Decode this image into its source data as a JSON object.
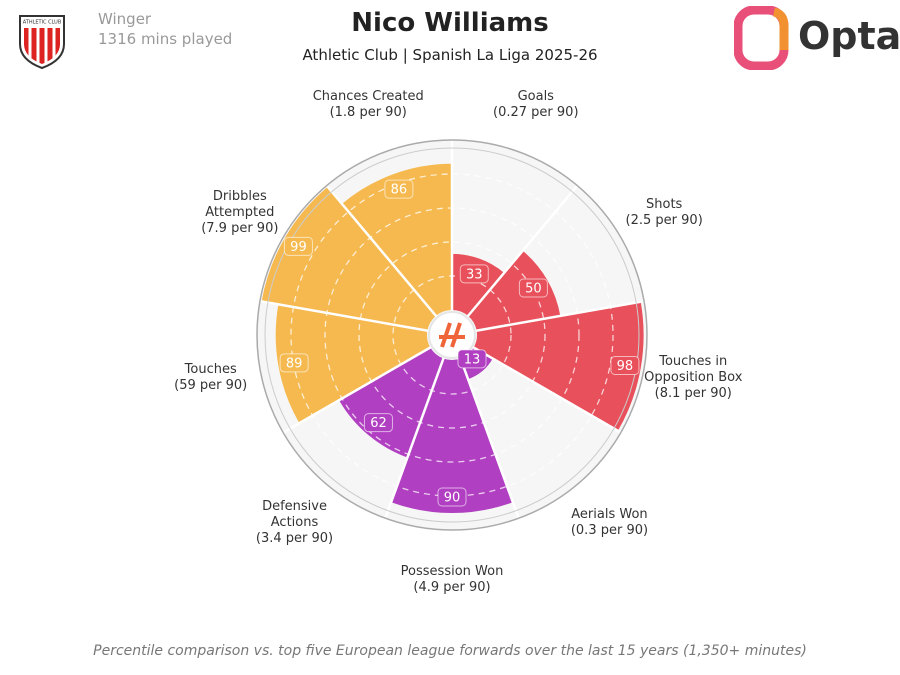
{
  "header": {
    "position": "Winger",
    "minutes": "1316 mins played",
    "crest_text": "ATHLETIC CLUB",
    "brand": "Opta"
  },
  "chart_data": {
    "type": "pizza",
    "title": "Nico Williams",
    "subtitle": "Athletic Club | Spanish La Liga 2025-26",
    "categories": [
      "Goals",
      "Shots",
      "Touches in Opposition Box",
      "Aerials Won",
      "Possession Won",
      "Defensive Actions",
      "Touches",
      "Dribbles Attempted",
      "Chances Created"
    ],
    "category_notes": [
      "(0.27 per 90)",
      "(2.5 per 90)",
      "(8.1 per 90)",
      "(0.3 per 90)",
      "(4.9 per 90)",
      "(3.4 per 90)",
      "(59 per 90)",
      "(7.9 per 90)",
      "(1.8 per 90)"
    ],
    "values": [
      33,
      50,
      98,
      13,
      90,
      62,
      89,
      99,
      86
    ],
    "colors": [
      "#e8505b",
      "#e8505b",
      "#e8505b",
      "#b13fc1",
      "#b13fc1",
      "#b13fc1",
      "#f5b94f",
      "#f5b94f",
      "#f5b94f"
    ],
    "rlim": [
      0,
      100
    ],
    "rticks": [
      20,
      40,
      60,
      80
    ],
    "grid": true
  },
  "footer": "Percentile comparison vs. top five European league forwards over the last 15 years (1,350+ minutes)"
}
